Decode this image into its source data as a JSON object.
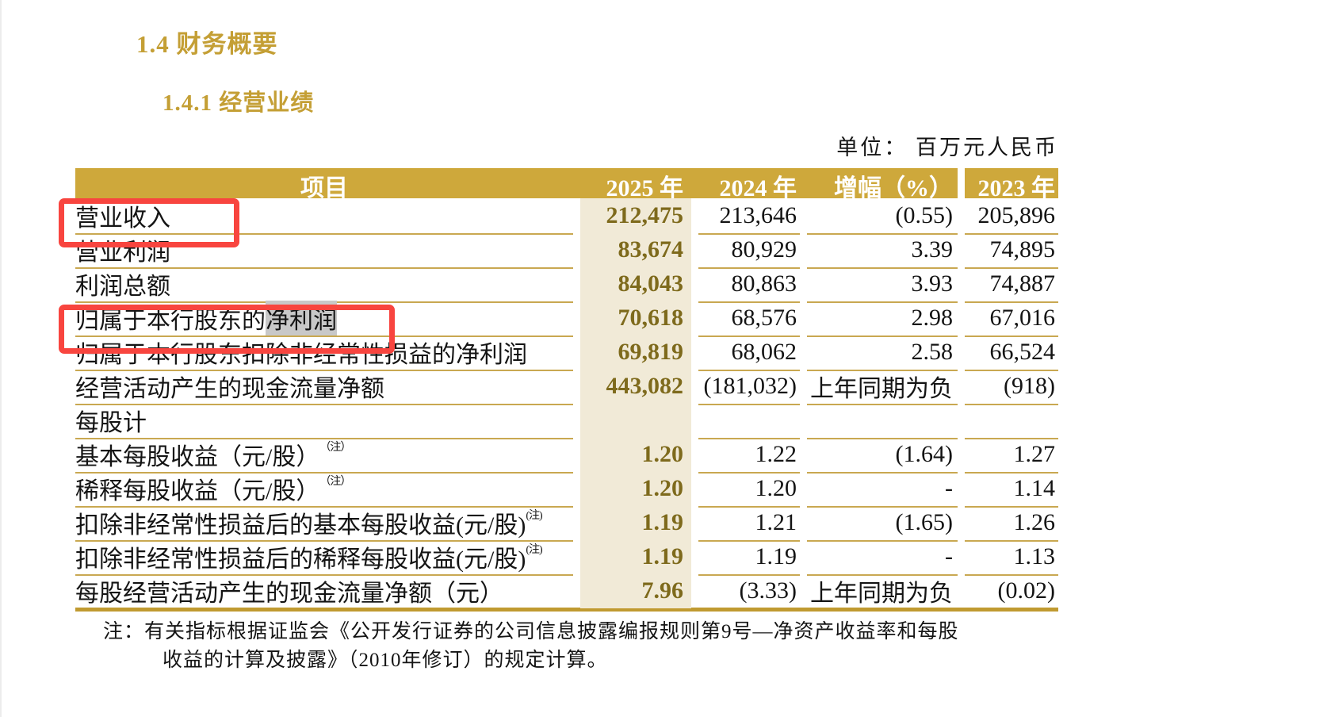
{
  "page": {
    "section_title": "1.4 财务概要",
    "subsection_title": "1.4.1 经营业绩",
    "unit_label": "单位： 百万元人民币",
    "note_line1": "注：有关指标根据证监会《公开发行证券的公司信息披露编报规则第9号—净资产收益率和每股",
    "note_line2": "收益的计算及披露》（2010年修订）的规定计算。"
  },
  "colors": {
    "gold": "#CEA83B",
    "gold-line": "#C9A851",
    "gold-rule": "#C09A30",
    "gold-text": "#C49F35",
    "beige": "#F1EAD7",
    "num-brown": "#7E6A1C",
    "ink": "#141414",
    "red": "#F8453F",
    "hl-gray": "#C8C8C8"
  },
  "table": {
    "headers": [
      "项目",
      "2025 年",
      "2024 年",
      "增幅（%）",
      "2023 年"
    ],
    "rows": [
      {
        "label": "营业收入",
        "y2025": "212,475",
        "y2024": "213,646",
        "change": "(0.55)",
        "y2023": "205,896"
      },
      {
        "label": "营业利润",
        "y2025": "83,674",
        "y2024": "80,929",
        "change": "3.39",
        "y2023": "74,895"
      },
      {
        "label": "利润总额",
        "y2025": "84,043",
        "y2024": "80,863",
        "change": "3.93",
        "y2023": "74,887"
      },
      {
        "label": "归属于本行股东的",
        "label_highlight": "净利润",
        "y2025": "70,618",
        "y2024": "68,576",
        "change": "2.98",
        "y2023": "67,016"
      },
      {
        "label": "归属于本行股东扣除非经常性损益的净利润",
        "y2025": "69,819",
        "y2024": "68,062",
        "change": "2.58",
        "y2023": "66,524"
      },
      {
        "label": "经营活动产生的现金流量净额",
        "y2025": "443,082",
        "y2024": "(181,032)",
        "change": "上年同期为负",
        "y2023": "(918)"
      },
      {
        "label": "每股计",
        "y2025": "",
        "y2024": "",
        "change": "",
        "y2023": ""
      },
      {
        "label": "基本每股收益（元/股）",
        "sup": "（注）",
        "y2025": "1.20",
        "y2024": "1.22",
        "change": "(1.64)",
        "y2023": "1.27"
      },
      {
        "label": "稀释每股收益（元/股）",
        "sup": "（注）",
        "y2025": "1.20",
        "y2024": "1.20",
        "change": "-",
        "y2023": "1.14"
      },
      {
        "label": "扣除非经常性损益后的基本每股收益(元/股)",
        "sup": "(注)",
        "y2025": "1.19",
        "y2024": "1.21",
        "change": "(1.65)",
        "y2023": "1.26"
      },
      {
        "label": "扣除非经常性损益后的稀释每股收益(元/股)",
        "sup": "(注)",
        "y2025": "1.19",
        "y2024": "1.19",
        "change": "-",
        "y2023": "1.13"
      },
      {
        "label": "每股经营活动产生的现金流量净额（元）",
        "y2025": "7.96",
        "y2024": "(3.33)",
        "change": "上年同期为负",
        "y2023": "(0.02)"
      }
    ]
  },
  "annotations": {
    "red_box_1_target": "营业收入",
    "red_box_2_target": "归属于本行股东的净利润",
    "text_selection_highlight": "净利润"
  }
}
